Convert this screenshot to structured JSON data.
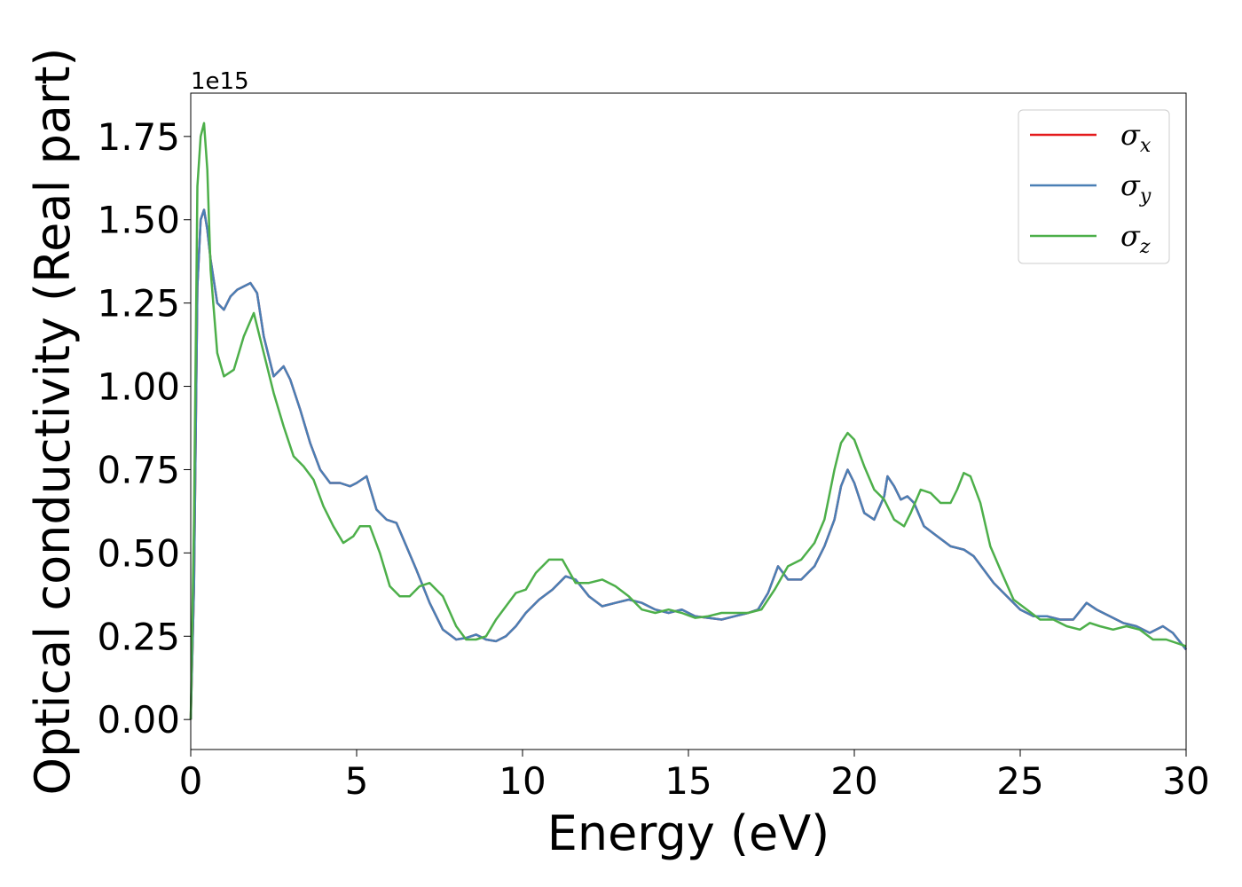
{
  "chart_data": {
    "type": "line",
    "xlabel": "Energy (eV)",
    "ylabel": "Optical conductivity (Real part)",
    "y_offset_label": "1e15",
    "xlim": [
      0,
      30
    ],
    "ylim": [
      -0.09,
      1.88
    ],
    "xticks": [
      0,
      5,
      10,
      15,
      20,
      25,
      30
    ],
    "xtick_labels": [
      "0",
      "5",
      "10",
      "15",
      "20",
      "25",
      "30"
    ],
    "yticks": [
      0.0,
      0.25,
      0.5,
      0.75,
      1.0,
      1.25,
      1.5,
      1.75
    ],
    "ytick_labels": [
      "0.00",
      "0.25",
      "0.50",
      "0.75",
      "1.00",
      "1.25",
      "1.50",
      "1.75"
    ],
    "grid": false,
    "legend_position": "top-right",
    "series": [
      {
        "name": "σx",
        "symbol": "σ",
        "subscript": "x",
        "color": "#e41a1c",
        "x": [
          0,
          0.1,
          0.2,
          0.3,
          0.4,
          0.5,
          0.6,
          0.8,
          1.0,
          1.2,
          1.4,
          1.6,
          1.8,
          2.0,
          2.2,
          2.5,
          2.8,
          3.0,
          3.3,
          3.6,
          3.9,
          4.2,
          4.5,
          4.8,
          5.0,
          5.3,
          5.6,
          5.9,
          6.2,
          6.5,
          6.8,
          7.2,
          7.6,
          8.0,
          8.3,
          8.6,
          8.9,
          9.2,
          9.5,
          9.8,
          10.1,
          10.5,
          10.9,
          11.3,
          11.6,
          12.0,
          12.4,
          12.8,
          13.2,
          13.6,
          14.0,
          14.4,
          14.8,
          15.2,
          15.6,
          16.0,
          16.4,
          16.8,
          17.1,
          17.4,
          17.7,
          18.0,
          18.4,
          18.8,
          19.1,
          19.4,
          19.6,
          19.8,
          20.0,
          20.3,
          20.6,
          20.9,
          21.0,
          21.2,
          21.4,
          21.6,
          21.8,
          22.1,
          22.5,
          22.9,
          23.3,
          23.6,
          23.9,
          24.2,
          24.6,
          25.0,
          25.4,
          25.8,
          26.2,
          26.6,
          27.0,
          27.3,
          27.7,
          28.1,
          28.5,
          28.9,
          29.3,
          29.6,
          30.0
        ],
        "values": [
          0.0,
          0.4,
          1.3,
          1.5,
          1.53,
          1.47,
          1.38,
          1.25,
          1.23,
          1.27,
          1.29,
          1.3,
          1.31,
          1.28,
          1.15,
          1.03,
          1.06,
          1.02,
          0.93,
          0.83,
          0.75,
          0.71,
          0.71,
          0.7,
          0.71,
          0.73,
          0.63,
          0.6,
          0.59,
          0.52,
          0.45,
          0.35,
          0.27,
          0.24,
          0.245,
          0.255,
          0.24,
          0.235,
          0.25,
          0.28,
          0.32,
          0.36,
          0.39,
          0.43,
          0.42,
          0.37,
          0.34,
          0.35,
          0.36,
          0.35,
          0.33,
          0.32,
          0.33,
          0.31,
          0.305,
          0.3,
          0.31,
          0.32,
          0.33,
          0.38,
          0.46,
          0.42,
          0.42,
          0.46,
          0.52,
          0.6,
          0.7,
          0.75,
          0.71,
          0.62,
          0.6,
          0.67,
          0.73,
          0.7,
          0.66,
          0.67,
          0.65,
          0.58,
          0.55,
          0.52,
          0.51,
          0.49,
          0.45,
          0.41,
          0.37,
          0.33,
          0.31,
          0.31,
          0.3,
          0.3,
          0.35,
          0.33,
          0.31,
          0.29,
          0.28,
          0.26,
          0.28,
          0.26,
          0.21
        ]
      },
      {
        "name": "σy",
        "symbol": "σ",
        "subscript": "y",
        "color": "#4a7fb5",
        "x": [
          0,
          0.1,
          0.2,
          0.3,
          0.4,
          0.5,
          0.6,
          0.8,
          1.0,
          1.2,
          1.4,
          1.6,
          1.8,
          2.0,
          2.2,
          2.5,
          2.8,
          3.0,
          3.3,
          3.6,
          3.9,
          4.2,
          4.5,
          4.8,
          5.0,
          5.3,
          5.6,
          5.9,
          6.2,
          6.5,
          6.8,
          7.2,
          7.6,
          8.0,
          8.3,
          8.6,
          8.9,
          9.2,
          9.5,
          9.8,
          10.1,
          10.5,
          10.9,
          11.3,
          11.6,
          12.0,
          12.4,
          12.8,
          13.2,
          13.6,
          14.0,
          14.4,
          14.8,
          15.2,
          15.6,
          16.0,
          16.4,
          16.8,
          17.1,
          17.4,
          17.7,
          18.0,
          18.4,
          18.8,
          19.1,
          19.4,
          19.6,
          19.8,
          20.0,
          20.3,
          20.6,
          20.9,
          21.0,
          21.2,
          21.4,
          21.6,
          21.8,
          22.1,
          22.5,
          22.9,
          23.3,
          23.6,
          23.9,
          24.2,
          24.6,
          25.0,
          25.4,
          25.8,
          26.2,
          26.6,
          27.0,
          27.3,
          27.7,
          28.1,
          28.5,
          28.9,
          29.3,
          29.6,
          30.0
        ],
        "values": [
          0.0,
          0.4,
          1.3,
          1.5,
          1.53,
          1.47,
          1.38,
          1.25,
          1.23,
          1.27,
          1.29,
          1.3,
          1.31,
          1.28,
          1.15,
          1.03,
          1.06,
          1.02,
          0.93,
          0.83,
          0.75,
          0.71,
          0.71,
          0.7,
          0.71,
          0.73,
          0.63,
          0.6,
          0.59,
          0.52,
          0.45,
          0.35,
          0.27,
          0.24,
          0.245,
          0.255,
          0.24,
          0.235,
          0.25,
          0.28,
          0.32,
          0.36,
          0.39,
          0.43,
          0.42,
          0.37,
          0.34,
          0.35,
          0.36,
          0.35,
          0.33,
          0.32,
          0.33,
          0.31,
          0.305,
          0.3,
          0.31,
          0.32,
          0.33,
          0.38,
          0.46,
          0.42,
          0.42,
          0.46,
          0.52,
          0.6,
          0.7,
          0.75,
          0.71,
          0.62,
          0.6,
          0.67,
          0.73,
          0.7,
          0.66,
          0.67,
          0.65,
          0.58,
          0.55,
          0.52,
          0.51,
          0.49,
          0.45,
          0.41,
          0.37,
          0.33,
          0.31,
          0.31,
          0.3,
          0.3,
          0.35,
          0.33,
          0.31,
          0.29,
          0.28,
          0.26,
          0.28,
          0.26,
          0.21
        ]
      },
      {
        "name": "σz",
        "symbol": "σ",
        "subscript": "z",
        "color": "#4daf4a",
        "x": [
          0,
          0.1,
          0.2,
          0.3,
          0.4,
          0.5,
          0.6,
          0.8,
          1.0,
          1.3,
          1.6,
          1.9,
          2.2,
          2.5,
          2.8,
          3.1,
          3.4,
          3.7,
          4.0,
          4.3,
          4.6,
          4.9,
          5.1,
          5.4,
          5.7,
          6.0,
          6.3,
          6.6,
          6.9,
          7.2,
          7.6,
          8.0,
          8.3,
          8.6,
          8.9,
          9.2,
          9.5,
          9.8,
          10.1,
          10.4,
          10.8,
          11.2,
          11.6,
          12.0,
          12.4,
          12.8,
          13.2,
          13.6,
          14.0,
          14.4,
          14.8,
          15.2,
          15.6,
          16.0,
          16.4,
          16.8,
          17.2,
          17.6,
          18.0,
          18.4,
          18.8,
          19.1,
          19.4,
          19.6,
          19.8,
          20.0,
          20.3,
          20.6,
          20.9,
          21.2,
          21.5,
          21.7,
          22.0,
          22.3,
          22.6,
          22.9,
          23.1,
          23.3,
          23.5,
          23.8,
          24.1,
          24.4,
          24.8,
          25.2,
          25.6,
          26.0,
          26.4,
          26.8,
          27.1,
          27.4,
          27.8,
          28.2,
          28.6,
          29.0,
          29.4,
          30.0
        ],
        "values": [
          0.0,
          0.6,
          1.6,
          1.75,
          1.79,
          1.65,
          1.35,
          1.1,
          1.03,
          1.05,
          1.15,
          1.22,
          1.1,
          0.98,
          0.88,
          0.79,
          0.76,
          0.72,
          0.64,
          0.58,
          0.53,
          0.55,
          0.58,
          0.58,
          0.5,
          0.4,
          0.37,
          0.37,
          0.4,
          0.41,
          0.37,
          0.28,
          0.24,
          0.24,
          0.25,
          0.3,
          0.34,
          0.38,
          0.39,
          0.44,
          0.48,
          0.48,
          0.41,
          0.41,
          0.42,
          0.4,
          0.37,
          0.33,
          0.32,
          0.33,
          0.32,
          0.305,
          0.31,
          0.32,
          0.32,
          0.32,
          0.33,
          0.39,
          0.46,
          0.48,
          0.53,
          0.6,
          0.75,
          0.83,
          0.86,
          0.84,
          0.76,
          0.69,
          0.66,
          0.6,
          0.58,
          0.62,
          0.69,
          0.68,
          0.65,
          0.65,
          0.69,
          0.74,
          0.73,
          0.65,
          0.52,
          0.45,
          0.36,
          0.33,
          0.3,
          0.3,
          0.28,
          0.27,
          0.29,
          0.28,
          0.27,
          0.28,
          0.27,
          0.24,
          0.24,
          0.22
        ]
      }
    ]
  }
}
